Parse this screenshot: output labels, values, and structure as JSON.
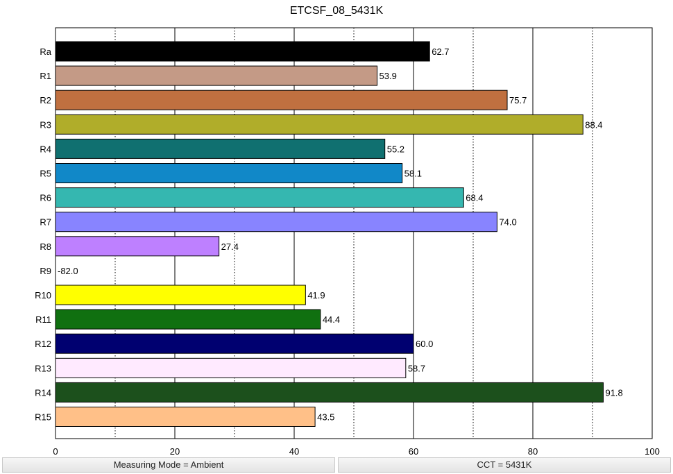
{
  "chart_data": {
    "type": "bar",
    "orientation": "horizontal",
    "title": "ETCSF_08_5431K",
    "xlabel": "",
    "ylabel": "",
    "xlim": [
      0,
      100
    ],
    "xticks": [
      0,
      20,
      40,
      60,
      80,
      100
    ],
    "grid": "vertical solid every 20, dotted every 10",
    "categories": [
      "Ra",
      "R1",
      "R2",
      "R3",
      "R4",
      "R5",
      "R6",
      "R7",
      "R8",
      "R9",
      "R10",
      "R11",
      "R12",
      "R13",
      "R14",
      "R15"
    ],
    "values": [
      62.7,
      53.9,
      75.7,
      88.4,
      55.2,
      58.1,
      68.4,
      74.0,
      27.4,
      -82.0,
      41.9,
      44.4,
      60.0,
      58.7,
      91.8,
      43.5
    ],
    "value_labels": [
      "62.7",
      "53.9",
      "75.7",
      "88.4",
      "55.2",
      "58.1",
      "68.4",
      "74.0",
      "27.4",
      "-82.0",
      "41.9",
      "44.4",
      "60.0",
      "58.7",
      "91.8",
      "43.5"
    ],
    "colors": [
      "#000000",
      "#c49a86",
      "#c07040",
      "#b0ad2a",
      "#107070",
      "#1188c8",
      "#35b7b0",
      "#8884ff",
      "#be80ff",
      "#9a6ad8",
      "#ffff00",
      "#107010",
      "#000070",
      "#ffeaff",
      "#1c501c",
      "#ffc088"
    ]
  },
  "status_bar": {
    "left": "Measuring Mode = Ambient",
    "right": "CCT = 5431K"
  }
}
